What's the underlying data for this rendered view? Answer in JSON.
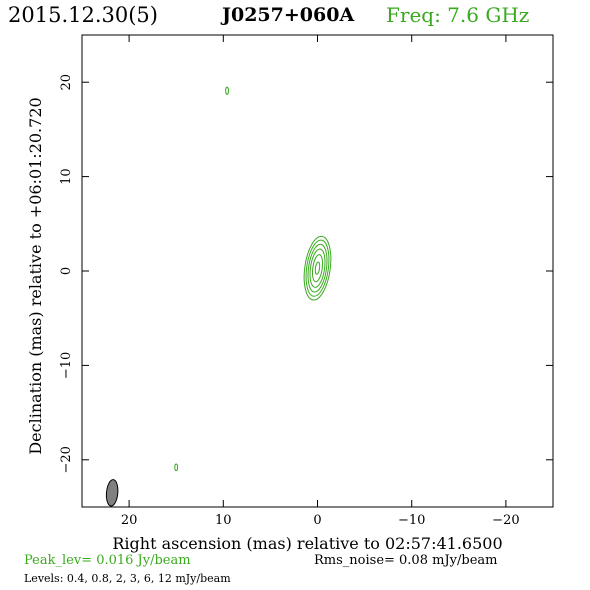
{
  "header": {
    "date": "2015.12.30(5)",
    "source": "J0257+060A",
    "freq": "Freq: 7.6 GHz"
  },
  "footer": {
    "peak": "Peak_lev=  0.016 Jy/beam",
    "rms": "Rms_noise= 0.08 mJy/beam",
    "levels": "Levels: 0.4, 0.8,   2,   3,   6,  12 mJy/beam"
  },
  "colors": {
    "contour": "#3aaa1f",
    "beam": "#808080",
    "axes": "#000000"
  },
  "chart_data": {
    "type": "contour",
    "xlabel": "Right ascension (mas) relative to 02:57:41.6500",
    "ylabel": "Declination (mas) relative to +06:01:20.720",
    "xlim": [
      25,
      -25
    ],
    "ylim": [
      -25,
      25
    ],
    "xticks": [
      20,
      10,
      0,
      -10,
      -20
    ],
    "xtick_labels": [
      "20",
      "10",
      "0",
      "−10",
      "−20"
    ],
    "yticks": [
      -20,
      -10,
      0,
      10,
      20
    ],
    "ytick_labels": [
      "−20",
      "−10",
      "0",
      "10",
      "20"
    ],
    "levels_mJy": [
      0.4,
      0.8,
      2,
      3,
      6,
      12
    ],
    "peak_Jy": 0.016,
    "rms_mJy": 0.08,
    "components": [
      {
        "x": 0.0,
        "y": 0.3,
        "angle": 8,
        "contours": [
          {
            "level_mJy": 0.4,
            "a": 1.35,
            "b": 3.4
          },
          {
            "level_mJy": 0.8,
            "a": 1.15,
            "b": 3.0
          },
          {
            "level_mJy": 2,
            "a": 0.95,
            "b": 2.55
          },
          {
            "level_mJy": 3,
            "a": 0.75,
            "b": 2.05
          },
          {
            "level_mJy": 6,
            "a": 0.5,
            "b": 1.45
          },
          {
            "level_mJy": 12,
            "a": 0.22,
            "b": 0.65
          }
        ]
      },
      {
        "x": 9.6,
        "y": 19.1,
        "angle": 0,
        "contours": [
          {
            "level_mJy": 0.4,
            "a": 0.15,
            "b": 0.38
          }
        ]
      },
      {
        "x": 15.0,
        "y": -20.8,
        "angle": 0,
        "contours": [
          {
            "level_mJy": 0.4,
            "a": 0.15,
            "b": 0.35
          }
        ]
      }
    ],
    "beam": {
      "x": 21.8,
      "y": -23.5,
      "major_mas": 2.8,
      "minor_mas": 1.2,
      "pa_deg": 5
    }
  }
}
